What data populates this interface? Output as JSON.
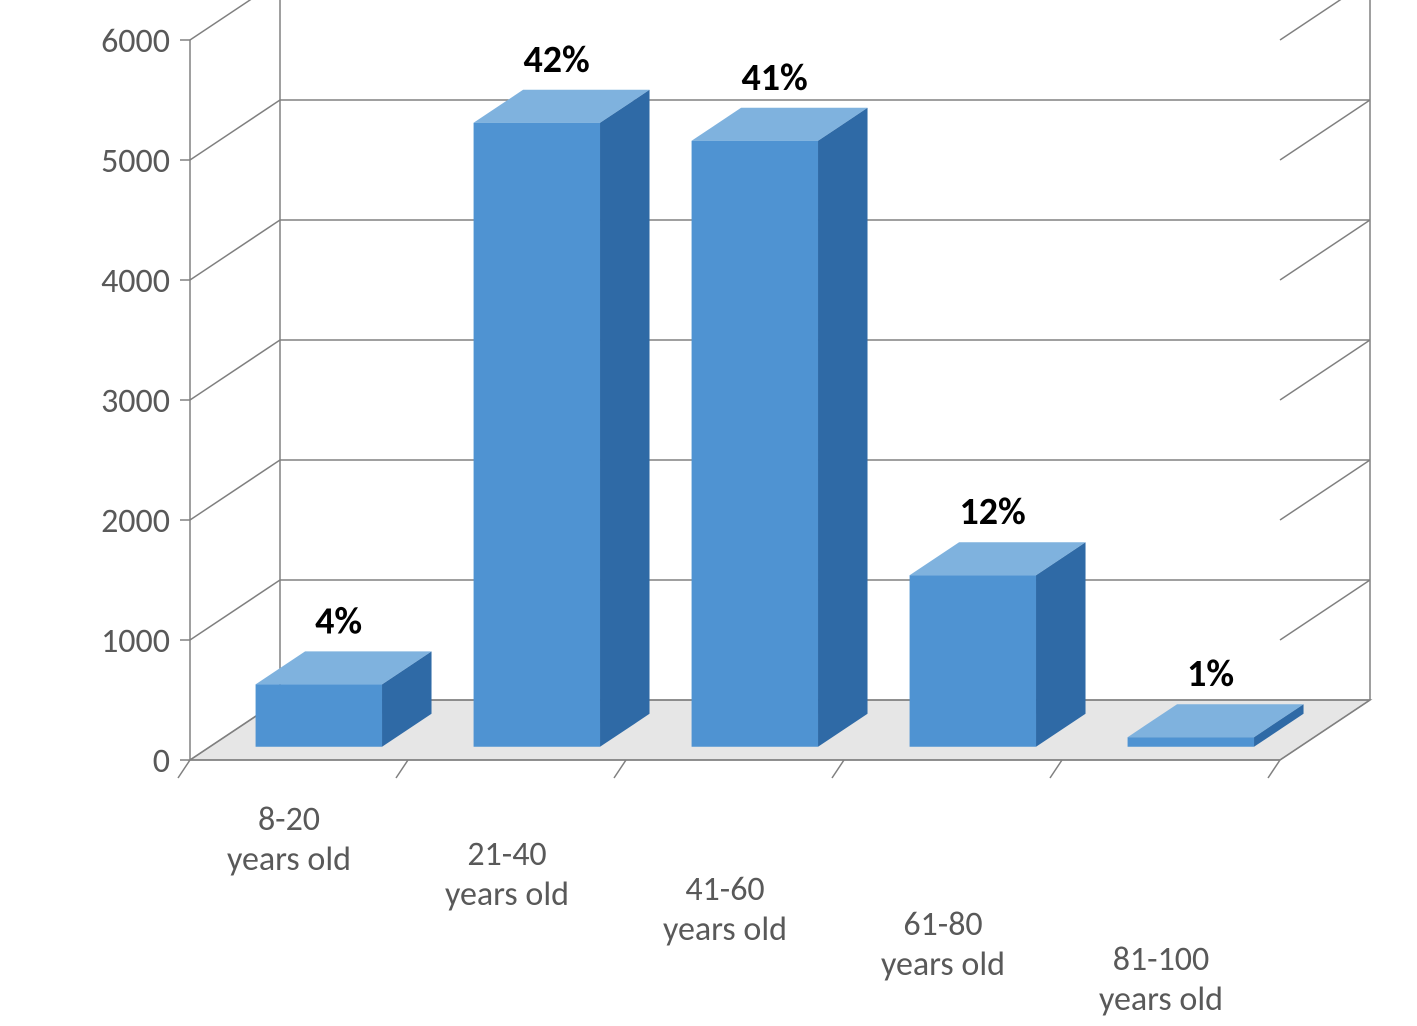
{
  "chart": {
    "type": "bar-3d",
    "background_color": "#ffffff",
    "categories": [
      "8-20 years old",
      "21-40 years old",
      "41-60 years old",
      "61-80 years old",
      "81-100 years old"
    ],
    "values": [
      520,
      5200,
      5050,
      1430,
      80
    ],
    "data_labels": [
      "4%",
      "42%",
      "41%",
      "12%",
      "1%"
    ],
    "bar_colors": {
      "front": "#4f93d2",
      "top": "#7fb2de",
      "side": "#2f6aa6"
    },
    "yaxis": {
      "min": 0,
      "max": 6000,
      "tick_step": 1000,
      "tick_labels": [
        "0",
        "1000",
        "2000",
        "3000",
        "4000",
        "5000",
        "6000"
      ],
      "tick_color": "#808080",
      "tick_fontsize": 34
    },
    "gridline_color": "#808080",
    "floor_color": "#e6e6e6",
    "floor_edge_color": "#808080",
    "back_wall_color": "#ffffff",
    "axis_label_color": "#595959",
    "data_label_color": "#000000",
    "data_label_fontsize": 38,
    "data_label_fontweight": "bold",
    "category_label_fontsize": 34,
    "depth": 80,
    "bar_width_ratio": 0.58
  }
}
